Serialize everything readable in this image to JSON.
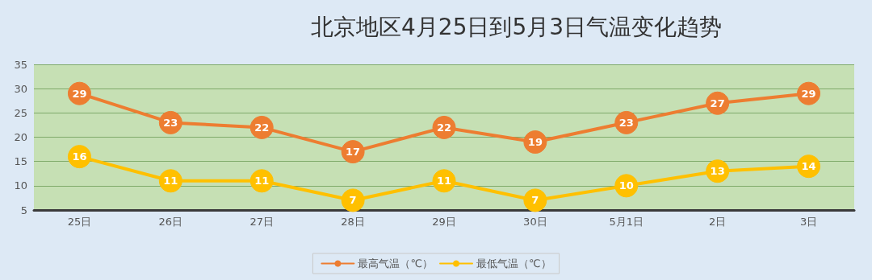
{
  "chart_data": {
    "type": "line",
    "title": "北京地区4月25日到5月3日气温变化趋势",
    "categories": [
      "25日",
      "26日",
      "27日",
      "28日",
      "29日",
      "30日",
      "5月1日",
      "2日",
      "3日"
    ],
    "series": [
      {
        "name": "最高气温（℃）",
        "color": "#ed7d31",
        "values": [
          29,
          23,
          22,
          17,
          22,
          19,
          23,
          27,
          29
        ]
      },
      {
        "name": "最低气温（℃）",
        "color": "#ffc000",
        "values": [
          16,
          11,
          11,
          7,
          11,
          7,
          10,
          13,
          14
        ]
      }
    ],
    "ylim": [
      5,
      35
    ],
    "yticks": [
      5,
      10,
      15,
      20,
      25,
      30,
      35
    ],
    "grid": "y",
    "legend": "bottom",
    "marker": "circle",
    "line_style": "solid",
    "data_labels": true
  }
}
